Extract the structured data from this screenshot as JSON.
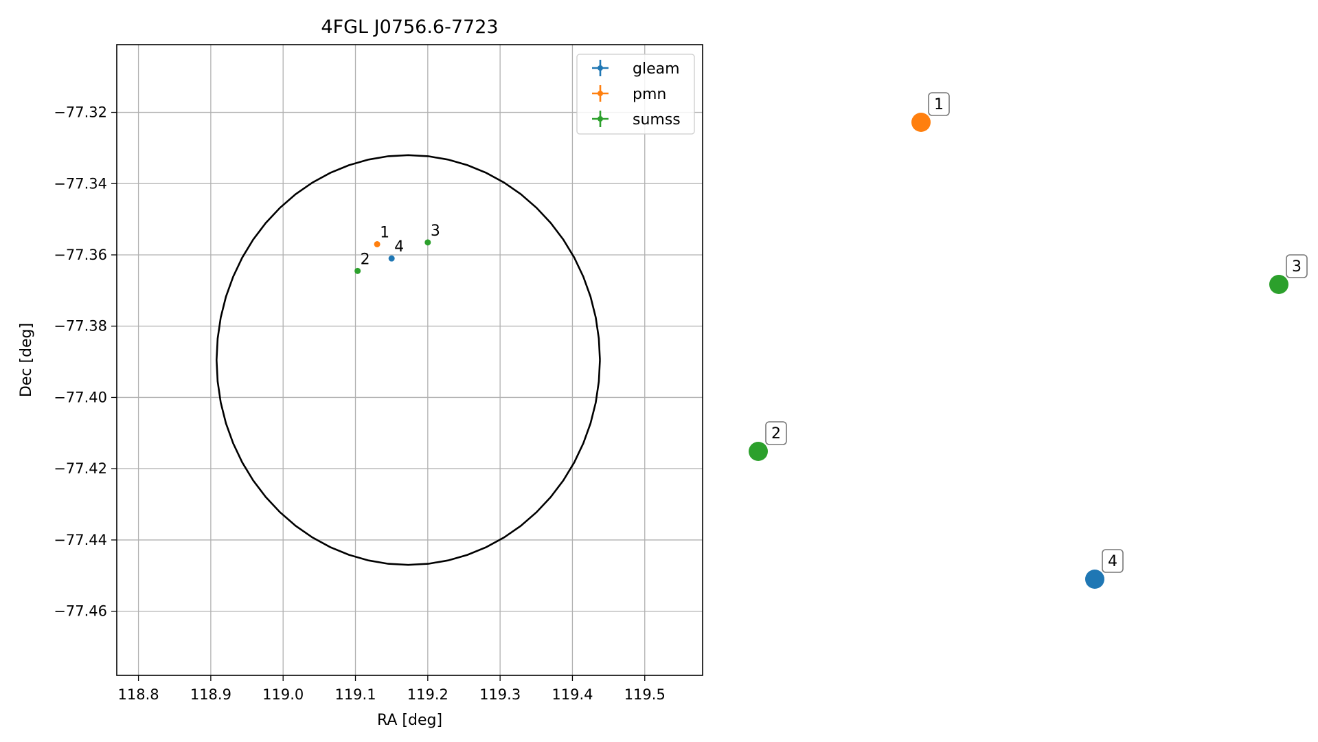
{
  "chart_data": {
    "type": "scatter",
    "title": "4FGL J0756.6-7723",
    "xlabel": "RA [deg]",
    "ylabel": "Dec [deg]",
    "xlim": [
      118.77,
      119.58
    ],
    "ylim": [
      -77.478,
      -77.301
    ],
    "xticks": [
      118.8,
      118.9,
      119.0,
      119.1,
      119.2,
      119.3,
      119.4,
      119.5
    ],
    "xtick_labels": [
      "118.8",
      "118.9",
      "119.0",
      "119.1",
      "119.2",
      "119.3",
      "119.4",
      "119.5"
    ],
    "yticks": [
      -77.32,
      -77.34,
      -77.36,
      -77.38,
      -77.4,
      -77.42,
      -77.44,
      -77.46
    ],
    "ytick_labels": [
      "−77.32",
      "−77.34",
      "−77.36",
      "−77.38",
      "−77.40",
      "−77.42",
      "−77.44",
      "−77.46"
    ],
    "grid": true,
    "legend_position": "top-right",
    "series": [
      {
        "name": "gleam",
        "color": "#1f77b4",
        "points": [
          {
            "x": 119.15,
            "y": -77.361,
            "label": "4"
          }
        ]
      },
      {
        "name": "pmn",
        "color": "#ff7f0e",
        "points": [
          {
            "x": 119.13,
            "y": -77.357,
            "label": "1"
          }
        ]
      },
      {
        "name": "sumss",
        "color": "#2ca02c",
        "points": [
          {
            "x": 119.103,
            "y": -77.3645,
            "label": "2"
          },
          {
            "x": 119.2,
            "y": -77.3565,
            "label": "3"
          }
        ]
      }
    ],
    "ellipse": {
      "center_x": 119.173,
      "center_y": -77.3895,
      "semi_x": 0.265,
      "semi_y": 0.0575,
      "color": "#000000"
    },
    "side_markers": [
      {
        "label": "1",
        "color": "#ff7f0e"
      },
      {
        "label": "2",
        "color": "#2ca02c"
      },
      {
        "label": "3",
        "color": "#2ca02c"
      },
      {
        "label": "4",
        "color": "#1f77b4"
      }
    ]
  }
}
